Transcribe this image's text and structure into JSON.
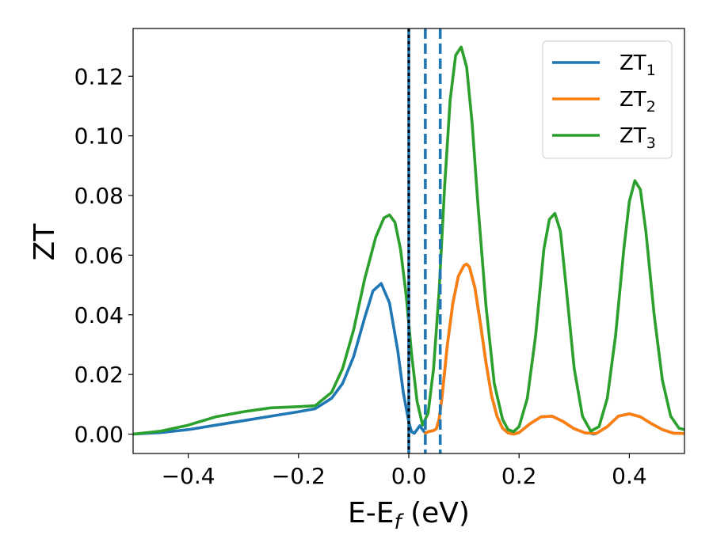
{
  "chart_data": {
    "type": "line",
    "xlabel": {
      "main": "E-E",
      "sub": "f",
      "suffix": " (eV)"
    },
    "ylabel": "ZT",
    "xlim": [
      -0.5,
      0.5
    ],
    "ylim": [
      -0.0065,
      0.136
    ],
    "xticks": [
      {
        "value": -0.4,
        "label": "−0.4"
      },
      {
        "value": -0.2,
        "label": "−0.2"
      },
      {
        "value": 0.0,
        "label": "0.0"
      },
      {
        "value": 0.2,
        "label": "0.2"
      },
      {
        "value": 0.4,
        "label": "0.4"
      }
    ],
    "yticks": [
      {
        "value": 0.0,
        "label": "0.00"
      },
      {
        "value": 0.02,
        "label": "0.02"
      },
      {
        "value": 0.04,
        "label": "0.04"
      },
      {
        "value": 0.06,
        "label": "0.06"
      },
      {
        "value": 0.08,
        "label": "0.08"
      },
      {
        "value": 0.1,
        "label": "0.10"
      },
      {
        "value": 0.12,
        "label": "0.12"
      }
    ],
    "grid": false,
    "legend_position": "top-right",
    "series": [
      {
        "name": "ZT",
        "name_sub": "1",
        "color": "#1f77b4",
        "x": [
          -0.5,
          -0.45,
          -0.4,
          -0.35,
          -0.3,
          -0.25,
          -0.2,
          -0.17,
          -0.14,
          -0.12,
          -0.1,
          -0.08,
          -0.065,
          -0.05,
          -0.035,
          -0.02,
          -0.01,
          0.0,
          0.005,
          0.01,
          0.015,
          0.02,
          0.025,
          0.03,
          0.035,
          0.04,
          0.045,
          0.05,
          0.055,
          0.06,
          0.07,
          0.08,
          0.09,
          0.1,
          0.105,
          0.11,
          0.12,
          0.13,
          0.14,
          0.15,
          0.16,
          0.17,
          0.18,
          0.19,
          0.2,
          0.22,
          0.24,
          0.26,
          0.28,
          0.3,
          0.32,
          0.33,
          0.335,
          0.34,
          0.36,
          0.38,
          0.4,
          0.42,
          0.44,
          0.46,
          0.48,
          0.5
        ],
        "y": [
          0.0,
          0.0005,
          0.0015,
          0.003,
          0.0045,
          0.006,
          0.0075,
          0.0085,
          0.012,
          0.017,
          0.026,
          0.039,
          0.048,
          0.0505,
          0.044,
          0.028,
          0.014,
          0.004,
          0.0008,
          0.0003,
          0.0015,
          0.0028,
          0.0015,
          0.0003,
          0.0008,
          0.001,
          0.0012,
          0.0018,
          0.005,
          0.012,
          0.03,
          0.044,
          0.053,
          0.0565,
          0.057,
          0.056,
          0.049,
          0.037,
          0.024,
          0.013,
          0.006,
          0.002,
          0.0004,
          0.0,
          0.0005,
          0.0035,
          0.0058,
          0.006,
          0.0042,
          0.0018,
          0.0004,
          0.0003,
          0.0,
          0.0002,
          0.0025,
          0.006,
          0.0068,
          0.0058,
          0.0035,
          0.0015,
          0.0003,
          0.0002
        ]
      },
      {
        "name": "ZT",
        "name_sub": "2",
        "color": "#ff7f0e",
        "x": [
          0.03,
          0.035,
          0.04,
          0.045,
          0.05,
          0.055,
          0.06,
          0.07,
          0.08,
          0.09,
          0.1,
          0.105,
          0.11,
          0.12,
          0.13,
          0.14,
          0.15,
          0.16,
          0.17,
          0.18,
          0.19,
          0.2,
          0.22,
          0.24,
          0.26,
          0.28,
          0.3,
          0.32,
          0.34,
          0.36,
          0.38,
          0.4,
          0.42,
          0.44,
          0.46,
          0.48,
          0.5
        ],
        "y": [
          0.0003,
          0.0008,
          0.001,
          0.0012,
          0.0018,
          0.005,
          0.012,
          0.03,
          0.044,
          0.053,
          0.0565,
          0.057,
          0.056,
          0.049,
          0.037,
          0.024,
          0.013,
          0.006,
          0.002,
          0.0004,
          0.0,
          0.0005,
          0.0035,
          0.0058,
          0.006,
          0.0042,
          0.0018,
          0.0004,
          0.0002,
          0.0025,
          0.006,
          0.0068,
          0.0058,
          0.0035,
          0.0015,
          0.0003,
          0.0002
        ]
      },
      {
        "name": "ZT",
        "name_sub": "3",
        "color": "#2ca02c",
        "x": [
          -0.5,
          -0.45,
          -0.4,
          -0.35,
          -0.3,
          -0.25,
          -0.2,
          -0.17,
          -0.14,
          -0.12,
          -0.1,
          -0.08,
          -0.06,
          -0.045,
          -0.035,
          -0.025,
          -0.015,
          -0.005,
          0.005,
          0.015,
          0.025,
          0.035,
          0.045,
          0.055,
          0.065,
          0.075,
          0.085,
          0.095,
          0.105,
          0.115,
          0.125,
          0.14,
          0.155,
          0.17,
          0.18,
          0.19,
          0.2,
          0.215,
          0.23,
          0.245,
          0.255,
          0.265,
          0.275,
          0.285,
          0.3,
          0.315,
          0.33,
          0.345,
          0.36,
          0.375,
          0.39,
          0.4,
          0.41,
          0.42,
          0.43,
          0.445,
          0.46,
          0.475,
          0.49,
          0.5
        ],
        "y": [
          0.0,
          0.001,
          0.003,
          0.0058,
          0.0075,
          0.0088,
          0.0092,
          0.0095,
          0.014,
          0.022,
          0.035,
          0.052,
          0.066,
          0.0725,
          0.0735,
          0.071,
          0.062,
          0.047,
          0.027,
          0.011,
          0.003,
          0.007,
          0.022,
          0.048,
          0.083,
          0.112,
          0.127,
          0.1298,
          0.123,
          0.104,
          0.078,
          0.043,
          0.017,
          0.005,
          0.0015,
          0.0008,
          0.0025,
          0.012,
          0.033,
          0.062,
          0.072,
          0.074,
          0.068,
          0.05,
          0.022,
          0.006,
          0.001,
          0.0025,
          0.012,
          0.033,
          0.062,
          0.078,
          0.085,
          0.082,
          0.068,
          0.04,
          0.018,
          0.006,
          0.002,
          0.0015
        ]
      }
    ],
    "vlines": [
      {
        "x": 0.0,
        "style": "solid",
        "color": "#1f77b4"
      },
      {
        "x": 0.0,
        "style": "dotted",
        "color": "#000000"
      },
      {
        "x": 0.03,
        "style": "dashed",
        "color": "#1f77b4"
      },
      {
        "x": 0.057,
        "style": "dashed",
        "color": "#1f77b4"
      }
    ]
  }
}
